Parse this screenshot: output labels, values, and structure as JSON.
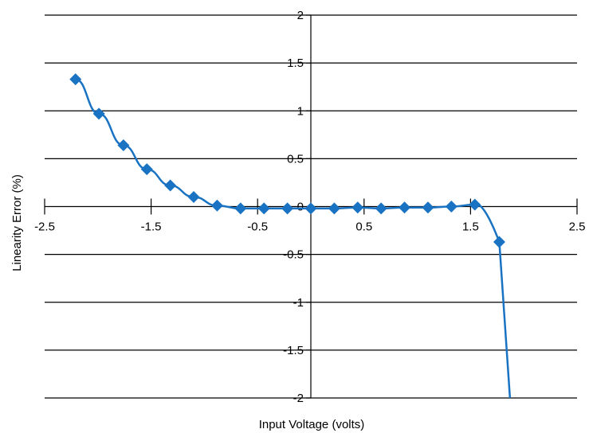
{
  "chart_data": {
    "type": "line",
    "title": "",
    "xlabel": "Input Voltage (volts)",
    "ylabel": "Linearity Error (%)",
    "xlim": [
      -2.5,
      2.5
    ],
    "ylim": [
      -2,
      2
    ],
    "x_ticks": [
      -2.5,
      -1.5,
      -0.5,
      0.5,
      1.5,
      2.5
    ],
    "x_tick_labels": [
      "-2.5",
      "-1.5",
      "-0.5",
      "0.5",
      "1.5",
      "2.5"
    ],
    "y_ticks": [
      2,
      1.5,
      1,
      0.5,
      0,
      -0.5,
      -1,
      -1.5,
      -2
    ],
    "y_tick_labels": [
      "2",
      "1.5",
      "1",
      "0.5",
      "0",
      "-0.5",
      "-1",
      "-1.5",
      "-2"
    ],
    "grid": "horizontal",
    "legend": "none",
    "series": [
      {
        "color": "#1a73c2",
        "marker": "diamond",
        "x": [
          -2.21,
          -1.99,
          -1.76,
          -1.54,
          -1.32,
          -1.1,
          -0.88,
          -0.66,
          -0.44,
          -0.22,
          0.0,
          0.22,
          0.44,
          0.66,
          0.88,
          1.1,
          1.32,
          1.54,
          1.77
        ],
        "y": [
          1.33,
          0.97,
          0.64,
          0.39,
          0.22,
          0.1,
          0.01,
          -0.02,
          -0.02,
          -0.02,
          -0.02,
          -0.02,
          -0.01,
          -0.02,
          -0.01,
          -0.01,
          0.0,
          0.02,
          -0.37
        ],
        "curve_end": [
          1.87,
          -2.0
        ]
      }
    ]
  }
}
